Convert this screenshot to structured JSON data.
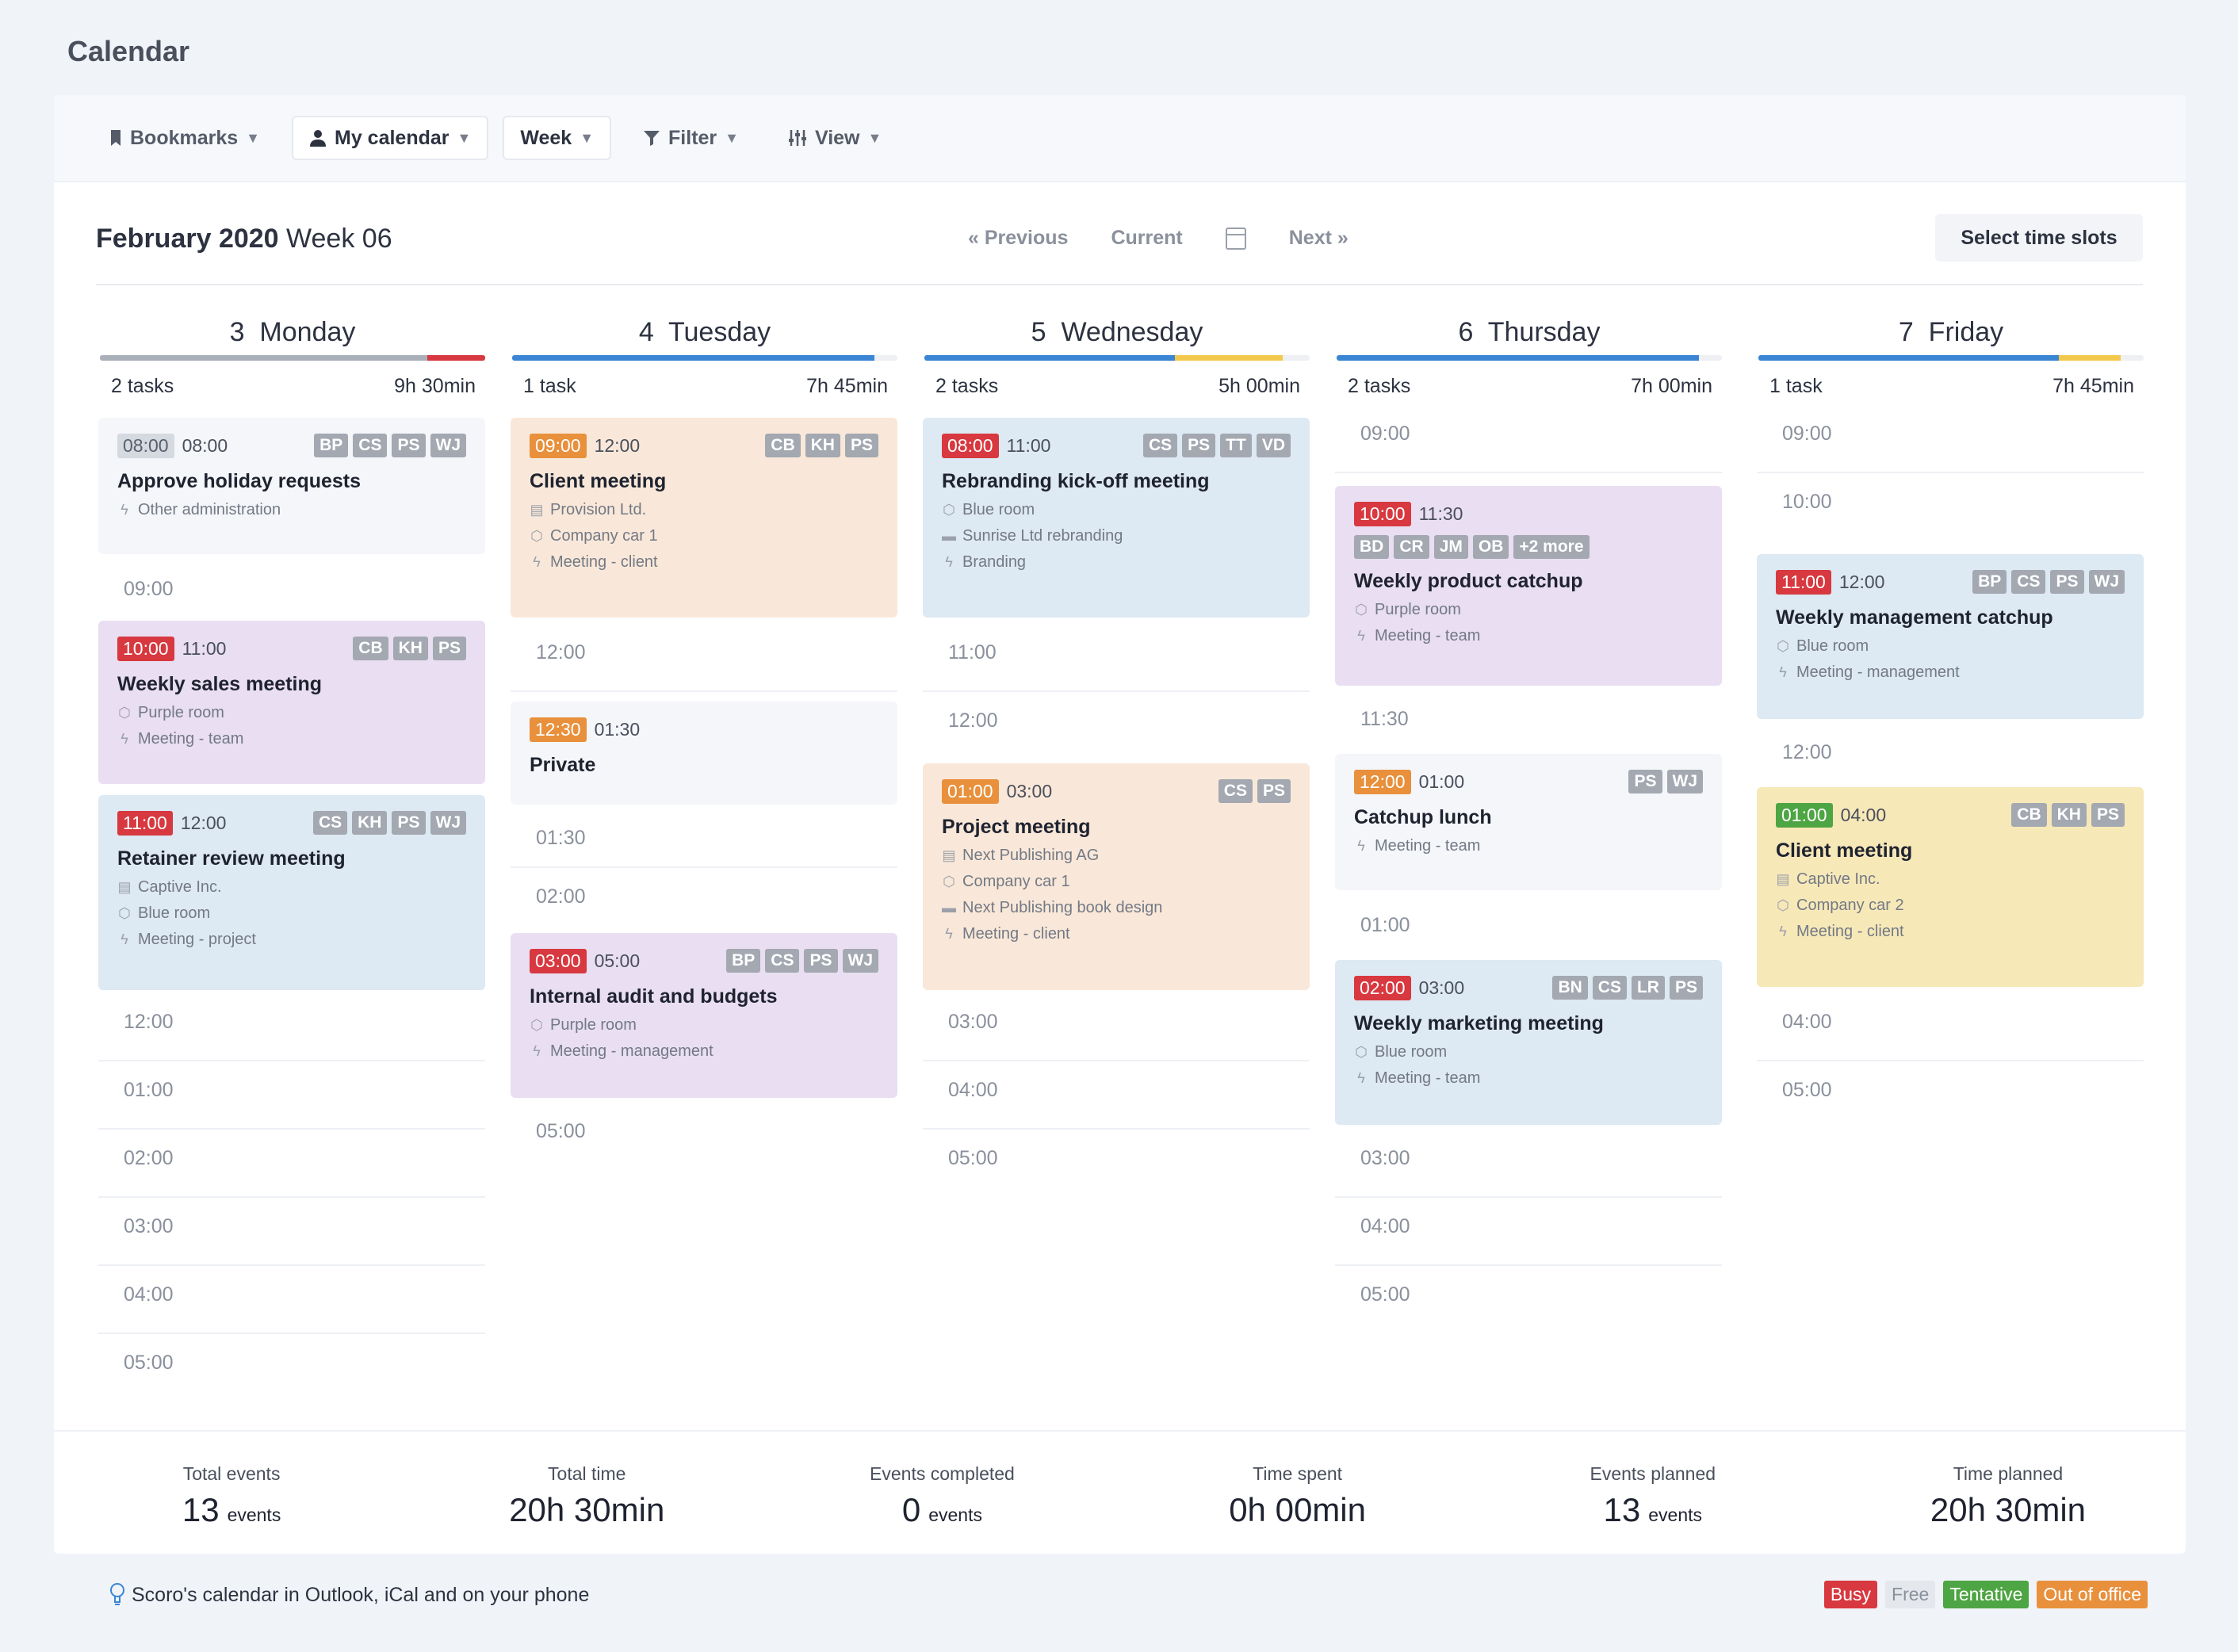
{
  "page": {
    "title": "Calendar"
  },
  "toolbar": {
    "bookmarks": "Bookmarks",
    "my_calendar": "My calendar",
    "week": "Week",
    "filter": "Filter",
    "view": "View"
  },
  "header": {
    "month": "February 2020",
    "week": "Week 06",
    "previous": "« Previous",
    "current": "Current",
    "next": "Next »",
    "select_slots": "Select time slots"
  },
  "days": [
    {
      "num": "3",
      "name": "Monday",
      "tasks": "2 tasks",
      "time": "9h 30min"
    },
    {
      "num": "4",
      "name": "Tuesday",
      "tasks": "1 task",
      "time": "7h 45min"
    },
    {
      "num": "5",
      "name": "Wednesday",
      "tasks": "2 tasks",
      "time": "5h 00min"
    },
    {
      "num": "6",
      "name": "Thursday",
      "tasks": "2 tasks",
      "time": "7h 00min"
    },
    {
      "num": "7",
      "name": "Friday",
      "tasks": "1 task",
      "time": "7h 45min"
    }
  ],
  "events": {
    "mon1": {
      "start": "08:00",
      "end": "08:00",
      "people": [
        "BP",
        "CS",
        "PS",
        "WJ"
      ],
      "title": "Approve holiday requests",
      "meta": [
        "Other administration"
      ]
    },
    "mon2": {
      "start": "10:00",
      "end": "11:00",
      "people": [
        "CB",
        "KH",
        "PS"
      ],
      "title": "Weekly sales meeting",
      "meta": [
        "Purple room",
        "Meeting - team"
      ]
    },
    "mon3": {
      "start": "11:00",
      "end": "12:00",
      "people": [
        "CS",
        "KH",
        "PS",
        "WJ"
      ],
      "title": "Retainer review meeting",
      "meta": [
        "Captive Inc.",
        "Blue room",
        "Meeting - project"
      ]
    },
    "tue1": {
      "start": "09:00",
      "end": "12:00",
      "people": [
        "CB",
        "KH",
        "PS"
      ],
      "title": "Client meeting",
      "meta": [
        "Provision Ltd.",
        "Company car 1",
        "Meeting - client"
      ]
    },
    "tue2": {
      "start": "12:30",
      "end": "01:30",
      "title": "Private"
    },
    "tue3": {
      "start": "03:00",
      "end": "05:00",
      "people": [
        "BP",
        "CS",
        "PS",
        "WJ"
      ],
      "title": "Internal audit and budgets",
      "meta": [
        "Purple room",
        "Meeting - management"
      ]
    },
    "wed1": {
      "start": "08:00",
      "end": "11:00",
      "people": [
        "CS",
        "PS",
        "TT",
        "VD"
      ],
      "title": "Rebranding kick-off meeting",
      "meta": [
        "Blue room",
        "Sunrise Ltd rebranding",
        "Branding"
      ]
    },
    "wed2": {
      "start": "01:00",
      "end": "03:00",
      "people": [
        "CS",
        "PS"
      ],
      "title": "Project meeting",
      "meta": [
        "Next Publishing AG",
        "Company car 1",
        "Next Publishing book design",
        "Meeting - client"
      ]
    },
    "thu1": {
      "start": "10:00",
      "end": "11:30",
      "people": [
        "BD",
        "CR",
        "JM",
        "OB",
        "+2 more"
      ],
      "title": "Weekly product catchup",
      "meta": [
        "Purple room",
        "Meeting - team"
      ]
    },
    "thu2": {
      "start": "12:00",
      "end": "01:00",
      "people": [
        "PS",
        "WJ"
      ],
      "title": "Catchup lunch",
      "meta": [
        "Meeting - team"
      ]
    },
    "thu3": {
      "start": "02:00",
      "end": "03:00",
      "people": [
        "BN",
        "CS",
        "LR",
        "PS"
      ],
      "title": "Weekly marketing meeting",
      "meta": [
        "Blue room",
        "Meeting - team"
      ]
    },
    "fri1": {
      "start": "11:00",
      "end": "12:00",
      "people": [
        "BP",
        "CS",
        "PS",
        "WJ"
      ],
      "title": "Weekly management catchup",
      "meta": [
        "Blue room",
        "Meeting - management"
      ]
    },
    "fri2": {
      "start": "01:00",
      "end": "04:00",
      "people": [
        "CB",
        "KH",
        "PS"
      ],
      "title": "Client meeting",
      "meta": [
        "Captive Inc.",
        "Company car 2",
        "Meeting - client"
      ]
    }
  },
  "slots": {
    "mon": [
      "09:00",
      "12:00",
      "01:00",
      "02:00",
      "03:00",
      "04:00",
      "05:00"
    ],
    "tue": [
      "12:00",
      "01:30",
      "02:00",
      "05:00"
    ],
    "wed": [
      "11:00",
      "12:00",
      "03:00",
      "04:00",
      "05:00"
    ],
    "thu": [
      "09:00",
      "11:30",
      "01:00",
      "03:00",
      "04:00",
      "05:00"
    ],
    "fri": [
      "09:00",
      "10:00",
      "12:00",
      "04:00",
      "05:00"
    ]
  },
  "stats": [
    {
      "label": "Total events",
      "value": "13",
      "unit": "events"
    },
    {
      "label": "Total time",
      "value": "20h 30min",
      "unit": ""
    },
    {
      "label": "Events completed",
      "value": "0",
      "unit": "events"
    },
    {
      "label": "Time spent",
      "value": "0h 00min",
      "unit": ""
    },
    {
      "label": "Events planned",
      "value": "13",
      "unit": "events"
    },
    {
      "label": "Time planned",
      "value": "20h 30min",
      "unit": ""
    }
  ],
  "footer": {
    "text": "Scoro's calendar in Outlook, iCal and on your phone"
  },
  "legend": {
    "busy": "Busy",
    "free": "Free",
    "tentative": "Tentative",
    "out": "Out of office"
  },
  "colors": {
    "busy": "#d8383f",
    "free": "#e4e7ec",
    "tentative": "#4ea543",
    "out": "#e8903c",
    "accent_blue": "#3a86d4"
  }
}
